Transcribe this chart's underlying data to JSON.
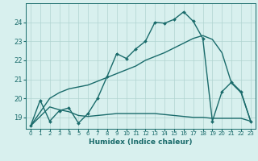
{
  "xlabel": "Humidex (Indice chaleur)",
  "xlim": [
    -0.5,
    23.5
  ],
  "ylim": [
    18.4,
    25.0
  ],
  "yticks": [
    19,
    20,
    21,
    22,
    23,
    24
  ],
  "xticks": [
    0,
    1,
    2,
    3,
    4,
    5,
    6,
    7,
    8,
    9,
    10,
    11,
    12,
    13,
    14,
    15,
    16,
    17,
    18,
    19,
    20,
    21,
    22,
    23
  ],
  "bg_color": "#d8f0ee",
  "grid_color": "#b0d4d0",
  "line_color": "#1a6b6b",
  "curve1_x": [
    0,
    1,
    2,
    3,
    4,
    5,
    6,
    7,
    8,
    9,
    10,
    11,
    12,
    13,
    14,
    15,
    16,
    17,
    18,
    19,
    20,
    21,
    22,
    23
  ],
  "curve1_y": [
    18.55,
    19.9,
    18.8,
    19.35,
    19.5,
    18.7,
    19.2,
    20.0,
    21.15,
    22.35,
    22.1,
    22.6,
    23.0,
    24.0,
    23.95,
    24.15,
    24.55,
    24.05,
    23.15,
    18.8,
    20.35,
    20.85,
    20.35,
    18.8
  ],
  "curve2_x": [
    0,
    2,
    3,
    4,
    5,
    6,
    7,
    8,
    9,
    10,
    11,
    12,
    13,
    14,
    15,
    16,
    17,
    18,
    19,
    20,
    21,
    22,
    23
  ],
  "curve2_y": [
    18.55,
    20.0,
    20.3,
    20.5,
    20.6,
    20.7,
    20.9,
    21.1,
    21.3,
    21.5,
    21.7,
    22.0,
    22.2,
    22.4,
    22.65,
    22.9,
    23.15,
    23.3,
    23.1,
    22.4,
    20.8,
    20.3,
    18.8
  ],
  "curve3_x": [
    0,
    2,
    3,
    4,
    5,
    6,
    7,
    8,
    9,
    10,
    11,
    12,
    13,
    14,
    15,
    16,
    17,
    18,
    19,
    20,
    21,
    22,
    23
  ],
  "curve3_y": [
    18.55,
    19.55,
    19.4,
    19.3,
    19.1,
    19.05,
    19.1,
    19.15,
    19.2,
    19.2,
    19.2,
    19.2,
    19.2,
    19.15,
    19.1,
    19.05,
    19.0,
    19.0,
    18.95,
    18.95,
    18.95,
    18.95,
    18.8
  ]
}
